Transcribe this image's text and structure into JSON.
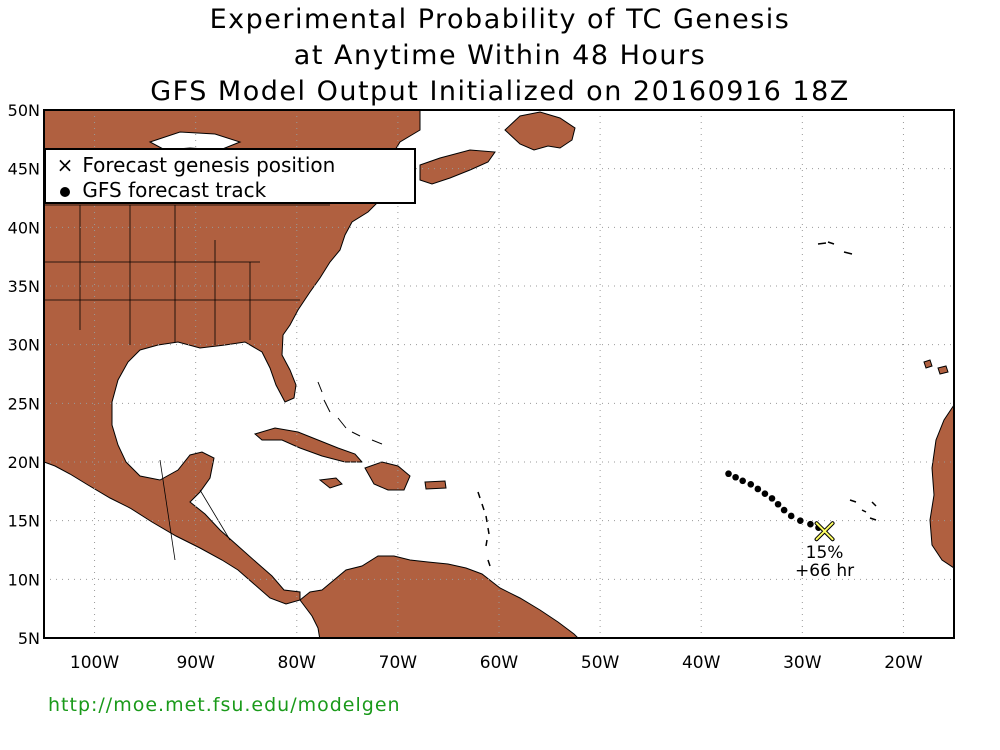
{
  "title": {
    "line1": "Experimental Probability of TC Genesis",
    "line2": "at Anytime Within 48 Hours",
    "line3": "GFS Model Output Initialized on 20160916 18Z"
  },
  "axes": {
    "lon_ticks": [
      "100W",
      "90W",
      "80W",
      "70W",
      "60W",
      "50W",
      "40W",
      "30W",
      "20W"
    ],
    "lat_ticks": [
      "50N",
      "45N",
      "40N",
      "35N",
      "30N",
      "25N",
      "20N",
      "15N",
      "10N",
      "5N"
    ],
    "lon_range": [
      -105,
      -15
    ],
    "lat_range": [
      5,
      50
    ],
    "grid": true
  },
  "legend": {
    "genesis_label": "Forecast genesis position",
    "genesis_symbol": "×",
    "track_label": "GFS forecast track"
  },
  "forecast": {
    "genesis_lon": -27.8,
    "genesis_lat": 14.1,
    "probability": "15%",
    "lead_time": "+66 hr",
    "track": [
      [
        -37.3,
        19.0
      ],
      [
        -36.6,
        18.7
      ],
      [
        -35.9,
        18.4
      ],
      [
        -35.1,
        18.1
      ],
      [
        -34.4,
        17.7
      ],
      [
        -33.7,
        17.3
      ],
      [
        -33.0,
        16.9
      ],
      [
        -32.4,
        16.4
      ],
      [
        -31.8,
        15.9
      ],
      [
        -31.1,
        15.4
      ],
      [
        -30.2,
        15.0
      ],
      [
        -29.2,
        14.7
      ],
      [
        -28.4,
        14.4
      ]
    ]
  },
  "colors": {
    "land": "#b06040",
    "ocean": "#ffffff",
    "genesis_marker": "#ffff66",
    "url": "#1a9a1a"
  },
  "source_url": "http://moe.met.fsu.edu/modelgen"
}
